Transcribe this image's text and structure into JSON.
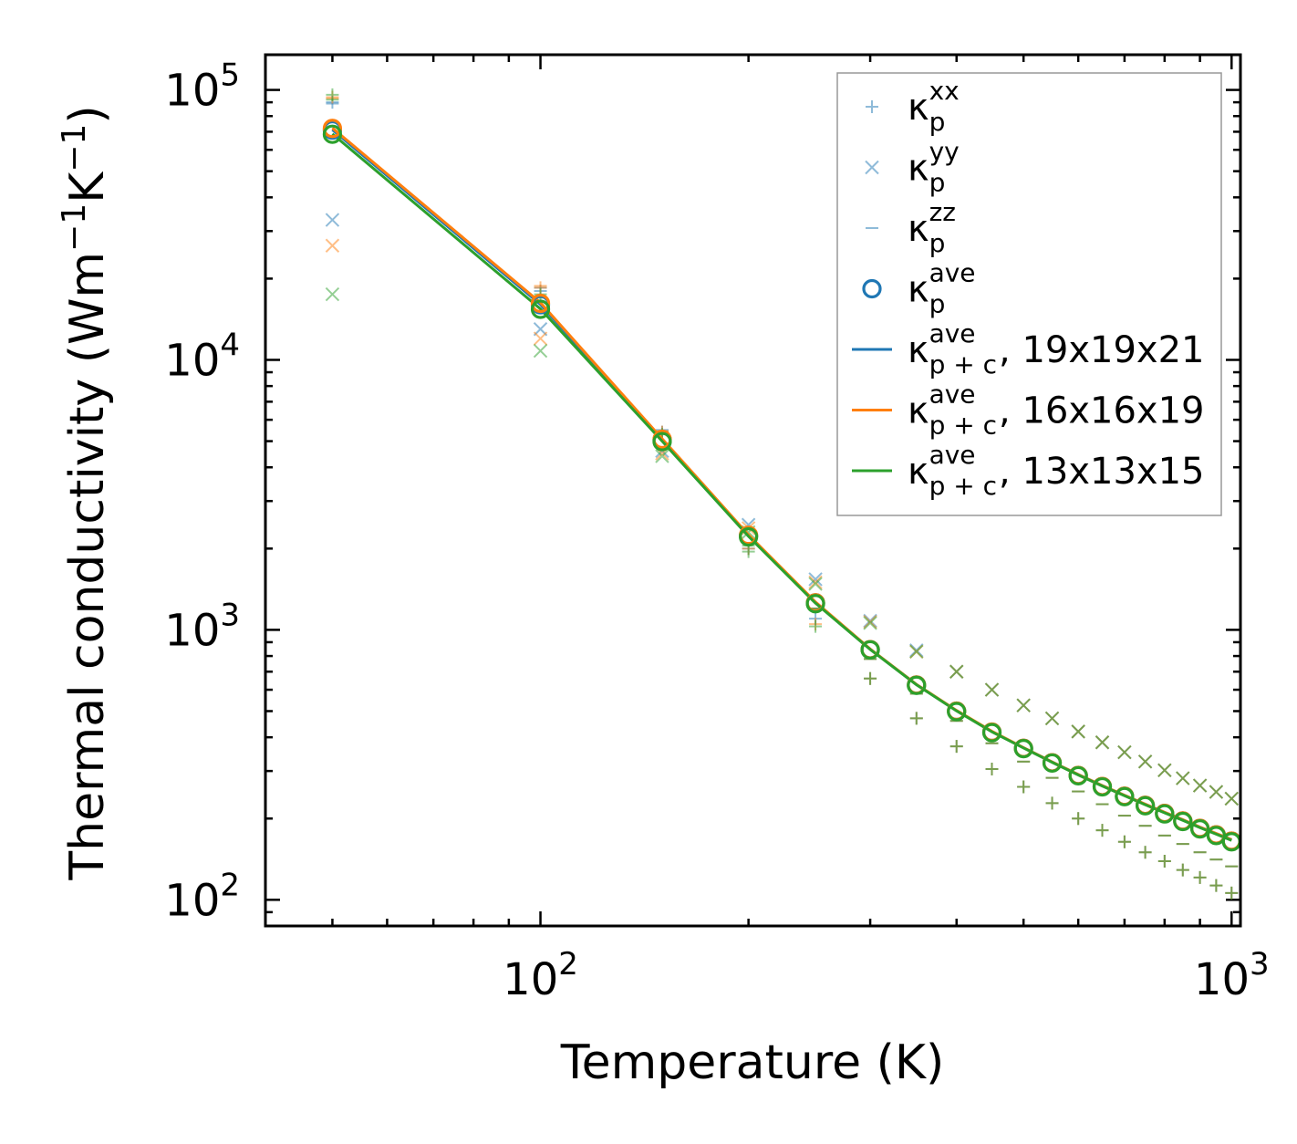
{
  "chart_data": {
    "type": "line",
    "title": "",
    "xlabel": "Temperature (K)",
    "ylabel": "Thermal conductivity (Wm",
    "ylabel_sup1": "−1",
    "ylabel_mid": "K",
    "ylabel_sup2": "−1",
    "ylabel_end": ")",
    "xscale": "log",
    "yscale": "log",
    "xlim": [
      40,
      1030
    ],
    "ylim": [
      80,
      135000
    ],
    "x_ticks": [
      {
        "base": "10",
        "exp": "2",
        "value": 100
      },
      {
        "base": "10",
        "exp": "3",
        "value": 1000
      }
    ],
    "y_ticks": [
      {
        "base": "10",
        "exp": "2",
        "value": 100
      },
      {
        "base": "10",
        "exp": "3",
        "value": 1000
      },
      {
        "base": "10",
        "exp": "4",
        "value": 10000
      },
      {
        "base": "10",
        "exp": "5",
        "value": 100000
      }
    ],
    "temperatures": [
      50,
      100,
      150,
      200,
      250,
      300,
      350,
      400,
      450,
      500,
      550,
      600,
      650,
      700,
      750,
      800,
      850,
      900,
      950,
      1000
    ],
    "series": [
      {
        "name": "κp xx (19x19x21)",
        "marker": "plus",
        "color": "#1f77b4",
        "values": [
          90000,
          18000,
          5400,
          2000,
          1100,
          660,
          470,
          370,
          305,
          262,
          228,
          200,
          181,
          164,
          150,
          139,
          129,
          121,
          113,
          106
        ]
      },
      {
        "name": "κp yy (19x19x21)",
        "marker": "x",
        "color": "#1f77b4",
        "values": [
          33000,
          13000,
          4600,
          2450,
          1540,
          1080,
          840,
          700,
          600,
          525,
          470,
          420,
          383,
          352,
          325,
          302,
          282,
          265,
          251,
          237
        ]
      },
      {
        "name": "κp zz (19x19x21)",
        "marker": "dash",
        "color": "#1f77b4",
        "values": [
          89000,
          18500,
          5500,
          2100,
          1200,
          780,
          580,
          460,
          380,
          325,
          283,
          252,
          226,
          205,
          188,
          173,
          161,
          150,
          141,
          133
        ]
      },
      {
        "name": "κp xx (16x16x19)",
        "marker": "plus",
        "color": "#ff7f0e",
        "values": [
          94000,
          18500,
          5400,
          2000,
          1050,
          660,
          470,
          370,
          305,
          262,
          228,
          200,
          181,
          164,
          150,
          139,
          129,
          121,
          113,
          106
        ]
      },
      {
        "name": "κp yy (16x16x19)",
        "marker": "x",
        "color": "#ff7f0e",
        "values": [
          26500,
          12000,
          4500,
          2380,
          1500,
          1070,
          830,
          700,
          600,
          525,
          470,
          420,
          383,
          352,
          325,
          302,
          282,
          265,
          251,
          237
        ]
      },
      {
        "name": "κp zz (16x16x19)",
        "marker": "dash",
        "color": "#ff7f0e",
        "values": [
          93000,
          18800,
          5450,
          2100,
          1200,
          780,
          580,
          460,
          380,
          325,
          283,
          252,
          226,
          205,
          188,
          173,
          161,
          150,
          141,
          133
        ]
      },
      {
        "name": "κp xx (13x13x15)",
        "marker": "plus",
        "color": "#2ca02c",
        "values": [
          96000,
          17500,
          5300,
          1950,
          1030,
          660,
          470,
          370,
          305,
          262,
          228,
          200,
          181,
          164,
          150,
          139,
          129,
          121,
          113,
          106
        ]
      },
      {
        "name": "κp yy (13x13x15)",
        "marker": "x",
        "color": "#2ca02c",
        "values": [
          17500,
          10800,
          4400,
          2300,
          1480,
          1060,
          830,
          700,
          600,
          525,
          470,
          420,
          383,
          352,
          325,
          302,
          282,
          265,
          251,
          237
        ]
      },
      {
        "name": "κp zz (13x13x15)",
        "marker": "dash",
        "color": "#2ca02c",
        "values": [
          92000,
          17000,
          5400,
          2050,
          1200,
          780,
          580,
          460,
          380,
          325,
          283,
          252,
          226,
          205,
          188,
          173,
          161,
          150,
          141,
          133
        ]
      },
      {
        "name": "κp ave (19x19x21)",
        "marker": "circle",
        "color": "#1f77b4",
        "values": [
          71000,
          16000,
          5050,
          2230,
          1260,
          845,
          625,
          500,
          418,
          364,
          322,
          289,
          263,
          242,
          224,
          209,
          196,
          184,
          174,
          165
        ]
      },
      {
        "name": "κp ave (16x16x19)",
        "marker": "circle",
        "color": "#ff7f0e",
        "values": [
          72000,
          16200,
          5080,
          2240,
          1260,
          845,
          625,
          500,
          418,
          364,
          322,
          289,
          263,
          242,
          224,
          209,
          196,
          184,
          174,
          165
        ]
      },
      {
        "name": "κp ave (13x13x15)",
        "marker": "circle",
        "color": "#2ca02c",
        "values": [
          68500,
          15400,
          4980,
          2210,
          1250,
          843,
          623,
          498,
          416,
          363,
          321,
          288,
          262,
          241,
          223,
          208,
          195,
          183,
          173,
          164
        ]
      },
      {
        "name": "κp+c ave, 19x19x21",
        "marker": "line",
        "color": "#1f77b4",
        "values": [
          71200,
          16050,
          5070,
          2240,
          1265,
          848,
          627,
          502,
          420,
          366,
          324,
          291,
          265,
          244,
          226,
          211,
          198,
          186,
          176,
          167
        ]
      },
      {
        "name": "κp+c ave, 16x16x19",
        "marker": "line",
        "color": "#ff7f0e",
        "values": [
          72300,
          16300,
          5100,
          2250,
          1268,
          849,
          628,
          503,
          421,
          366,
          324,
          291,
          265,
          244,
          226,
          211,
          198,
          186,
          176,
          167
        ]
      },
      {
        "name": "κp+c ave, 13x13x15",
        "marker": "line",
        "color": "#2ca02c",
        "values": [
          68700,
          15450,
          5000,
          2220,
          1255,
          846,
          626,
          501,
          419,
          365,
          323,
          290,
          264,
          243,
          225,
          210,
          197,
          185,
          175,
          166
        ]
      }
    ],
    "legend": {
      "position": "top-right",
      "entries": [
        {
          "symbol": "κ",
          "sub": "p",
          "sup": "xx",
          "suffix": "",
          "marker": "plus",
          "color": "#1f77b4",
          "alpha": 0.5
        },
        {
          "symbol": "κ",
          "sub": "p",
          "sup": "yy",
          "suffix": "",
          "marker": "x",
          "color": "#1f77b4",
          "alpha": 0.5
        },
        {
          "symbol": "κ",
          "sub": "p",
          "sup": "zz",
          "suffix": "",
          "marker": "dash",
          "color": "#1f77b4",
          "alpha": 0.5
        },
        {
          "symbol": "κ",
          "sub": "p",
          "sup": "ave",
          "suffix": "",
          "marker": "circle",
          "color": "#1f77b4",
          "alpha": 1
        },
        {
          "symbol": "κ",
          "sub": "p + c",
          "sup": "ave",
          "suffix": ", 19x19x21",
          "marker": "line",
          "color": "#1f77b4",
          "alpha": 1
        },
        {
          "symbol": "κ",
          "sub": "p + c",
          "sup": "ave",
          "suffix": ", 16x16x19",
          "marker": "line",
          "color": "#ff7f0e",
          "alpha": 1
        },
        {
          "symbol": "κ",
          "sub": "p + c",
          "sup": "ave",
          "suffix": ", 13x13x15",
          "marker": "line",
          "color": "#2ca02c",
          "alpha": 1
        }
      ]
    },
    "grid": false
  }
}
